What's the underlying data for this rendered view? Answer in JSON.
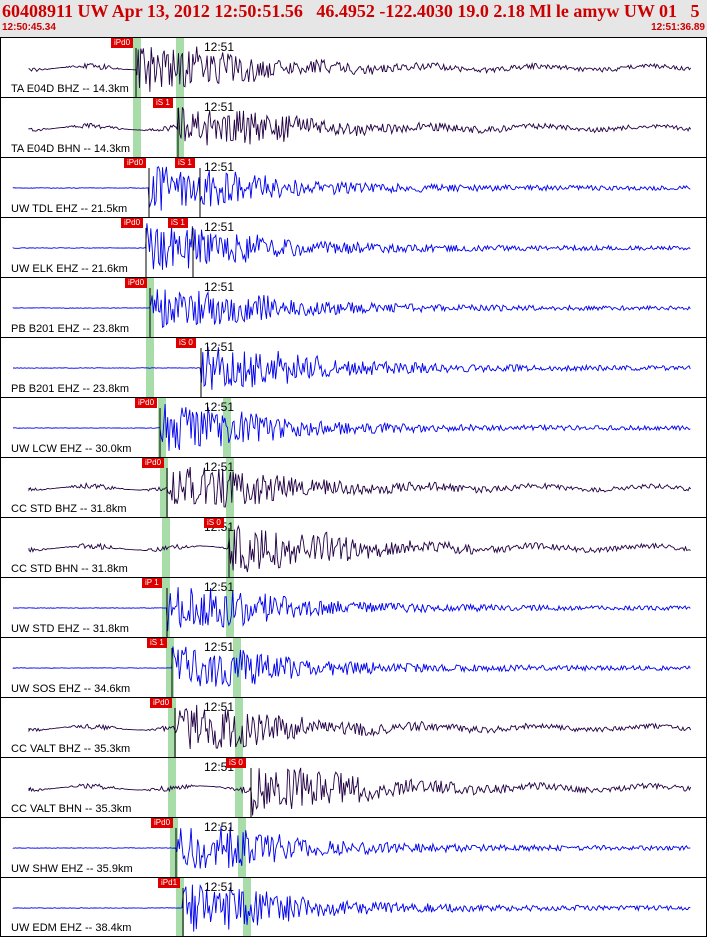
{
  "header": {
    "title": "60408911 UW Apr 13, 2012 12:50:51.56   46.4952 -122.4030 19.0 2.18 Ml le amyw UW 01   5",
    "start_time": "12:50:45.34",
    "end_time": "12:51:36.89"
  },
  "minute_label": "12:51",
  "colors": {
    "title": "#cc0000",
    "vertical": "#0000ee",
    "horizontal": "#220044",
    "pick": "#dd0000",
    "band": "#a8dca8"
  },
  "traces": [
    {
      "label": "TA E04D BHZ -- 14.3km",
      "color": "horizontal",
      "picks": [
        {
          "text": "iPd0",
          "x": 110
        }
      ],
      "bands": [
        135,
        178
      ]
    },
    {
      "label": "TA E04D BHN -- 14.3km",
      "color": "horizontal",
      "picks": [
        {
          "text": "iS 1",
          "x": 152
        }
      ],
      "bands": [
        135,
        178
      ]
    },
    {
      "label": "UW TDL EHZ -- 21.5km",
      "color": "vertical",
      "picks": [
        {
          "text": "iPd0",
          "x": 123
        },
        {
          "text": "iS 1",
          "x": 174
        }
      ],
      "bands": []
    },
    {
      "label": "UW ELK EHZ -- 21.6km",
      "color": "vertical",
      "picks": [
        {
          "text": "iPd0",
          "x": 120
        },
        {
          "text": "iS 1",
          "x": 167
        }
      ],
      "bands": []
    },
    {
      "label": "PB B201 EHZ -- 23.8km",
      "color": "vertical",
      "picks": [
        {
          "text": "iPd0",
          "x": 124
        }
      ],
      "bands": [
        148
      ]
    },
    {
      "label": "PB B201 EHZ -- 23.8km",
      "color": "vertical",
      "picks": [
        {
          "text": "iS 0",
          "x": 175
        }
      ],
      "bands": [
        148
      ]
    },
    {
      "label": "UW LCW EHZ -- 30.0km",
      "color": "vertical",
      "picks": [
        {
          "text": "iPd0",
          "x": 134
        }
      ],
      "bands": [
        160,
        225
      ]
    },
    {
      "label": "CC STD BHZ -- 31.8km",
      "color": "horizontal",
      "picks": [
        {
          "text": "iPd0",
          "x": 141
        }
      ],
      "bands": [
        162,
        228
      ]
    },
    {
      "label": "CC STD BHN -- 31.8km",
      "color": "horizontal",
      "picks": [
        {
          "text": "iS 0",
          "x": 203
        }
      ],
      "bands": [
        164,
        228
      ]
    },
    {
      "label": "UW STD EHZ -- 31.8km",
      "color": "vertical",
      "picks": [
        {
          "text": "iP 1",
          "x": 141
        }
      ],
      "bands": [
        164,
        228
      ]
    },
    {
      "label": "UW SOS EHZ -- 34.6km",
      "color": "vertical",
      "picks": [
        {
          "text": "iS 1",
          "x": 146
        }
      ],
      "bands": [
        168,
        235
      ]
    },
    {
      "label": "CC VALT BHZ -- 35.3km",
      "color": "horizontal",
      "picks": [
        {
          "text": "iPd0",
          "x": 149
        }
      ],
      "bands": [
        170,
        237
      ]
    },
    {
      "label": "CC VALT BHN -- 35.3km",
      "color": "horizontal",
      "picks": [
        {
          "text": "iS 0",
          "x": 225
        }
      ],
      "bands": [
        170,
        237
      ]
    },
    {
      "label": "UW SHW EHZ -- 35.9km",
      "color": "vertical",
      "picks": [
        {
          "text": "iPd0",
          "x": 150
        }
      ],
      "bands": [
        172,
        240
      ]
    },
    {
      "label": "UW EDM EHZ -- 38.4km",
      "color": "vertical",
      "picks": [
        {
          "text": "iPd1",
          "x": 157
        }
      ],
      "bands": [
        178,
        245
      ]
    }
  ]
}
